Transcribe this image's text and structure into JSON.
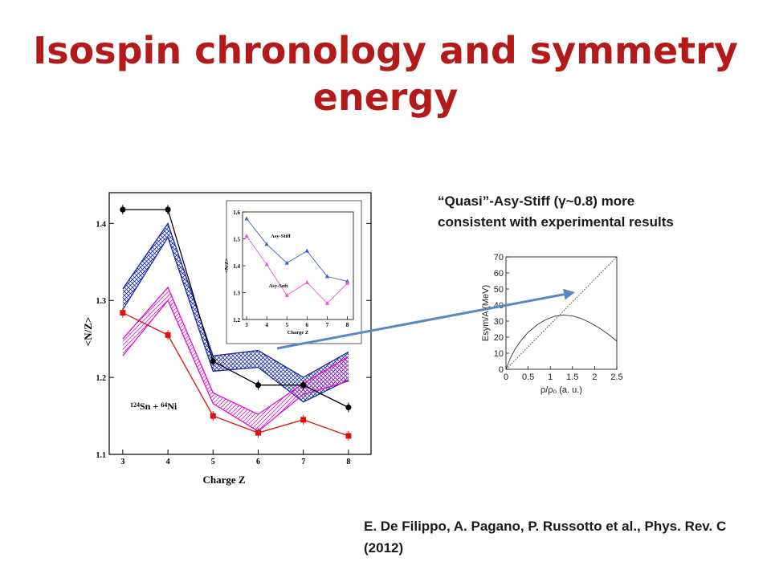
{
  "slide": {
    "title": "Isospin chronology and symmetry energy",
    "note": "“Quasi”-Asy-Stiff (γ~0.8) more consistent with experimental results",
    "citation": "E. De Filippo, A. Pagano, P. Russotto et al., Phys. Rev. C (2012)"
  },
  "colors": {
    "title": "#b31b1b",
    "black_series": "#000000",
    "red_series": "#e01010",
    "blue_band": "#1a2aa8",
    "magenta_band": "#e010d0",
    "arrow": "#5b87c4"
  },
  "chart_data": [
    {
      "type": "line",
      "xlabel": "Charge Z",
      "ylabel": "<N/Z>",
      "annotation": "124Sn + 64Ni",
      "xlim": [
        2.7,
        8.5
      ],
      "ylim": [
        1.1,
        1.44
      ],
      "xticks": [
        3,
        4,
        5,
        6,
        7,
        8
      ],
      "yticks": [
        1.1,
        1.2,
        1.3,
        1.4
      ],
      "x": [
        3,
        4,
        5,
        6,
        7,
        8
      ],
      "series": [
        {
          "values": [
            1.418,
            1.418,
            1.221,
            1.19,
            1.19,
            1.161
          ],
          "color": "black",
          "marker": "circle"
        },
        {
          "values": [
            1.284,
            1.255,
            1.15,
            1.128,
            1.145,
            1.124
          ],
          "color": "red",
          "marker": "square"
        }
      ],
      "bands": [
        {
          "color": "blue",
          "upper": [
            1.315,
            1.4,
            1.228,
            1.235,
            1.2,
            1.233
          ],
          "lower": [
            1.288,
            1.382,
            1.208,
            1.213,
            1.168,
            1.197
          ]
        },
        {
          "color": "magenta",
          "upper": [
            1.25,
            1.317,
            1.18,
            1.152,
            1.192,
            1.227
          ],
          "lower": [
            1.228,
            1.3,
            1.166,
            1.13,
            1.178,
            1.195
          ]
        }
      ],
      "inset": {
        "type": "line",
        "xlabel": "Charge Z",
        "ylabel": "<N/Z>",
        "xlim": [
          2.8,
          8.3
        ],
        "ylim": [
          1.2,
          1.6
        ],
        "xticks": [
          3,
          4,
          5,
          6,
          7,
          8
        ],
        "yticks": [
          1.2,
          1.3,
          1.4,
          1.5,
          1.6
        ],
        "x": [
          3,
          4,
          5,
          6,
          7,
          8
        ],
        "series": [
          {
            "name": "Asy-Stiff",
            "values": [
              1.575,
              1.48,
              1.41,
              1.455,
              1.36,
              1.342
            ],
            "color": "blue"
          },
          {
            "name": "Asy-Soft",
            "values": [
              1.51,
              1.405,
              1.29,
              1.338,
              1.26,
              1.335
            ],
            "color": "magenta"
          }
        ]
      }
    },
    {
      "type": "line",
      "xlabel": "ρ/ρ₀ (a. u.)",
      "ylabel": "Esym/A (MeV)",
      "xlim": [
        0,
        2.5
      ],
      "ylim": [
        0,
        70
      ],
      "xticks": [
        0,
        0.5,
        1,
        1.5,
        2,
        2.5
      ],
      "yticks": [
        0,
        10,
        20,
        30,
        40,
        50,
        60,
        70
      ],
      "series": [
        {
          "x": [
            0,
            0.1,
            0.2,
            0.35,
            0.5,
            0.7,
            0.9,
            1.1,
            1.3,
            1.5,
            1.7,
            1.9,
            2.1,
            2.3,
            2.5
          ],
          "values": [
            0,
            7,
            12.3,
            18.3,
            23,
            27.6,
            31,
            33,
            33.8,
            33.2,
            31.6,
            29,
            25.8,
            22,
            17.5
          ],
          "style": "solid"
        },
        {
          "x": [
            0,
            0.5,
            1,
            1.5,
            2,
            2.5
          ],
          "values": [
            0,
            14,
            28,
            42,
            56,
            70
          ],
          "style": "dotted"
        }
      ]
    }
  ]
}
